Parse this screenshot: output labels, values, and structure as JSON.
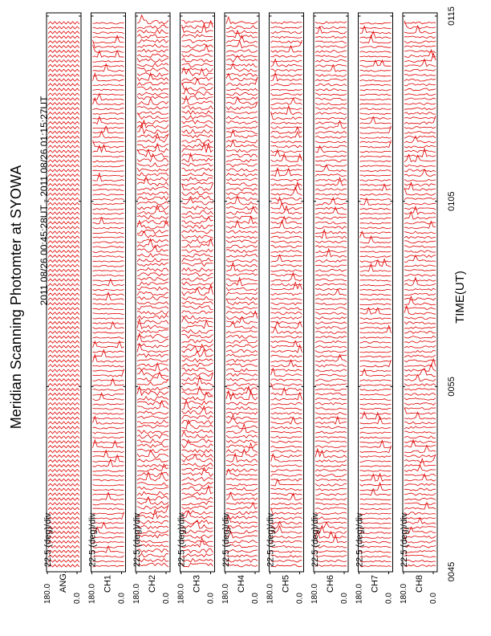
{
  "chart_data": {
    "type": "line",
    "title": "Meridian Scanning Photomter at SYOWA",
    "subtitle": "2011 08/26 00:45:28UT - 2011 08/26 01:15:27UT",
    "xlabel": "TIME(UT)",
    "xticks": [
      "0045",
      "0055",
      "0105",
      "0115"
    ],
    "color": "#e00000",
    "panels": [
      {
        "label": "ANG.",
        "scale": "22.5 (deg)/div",
        "yticks": [
          {
            "value": 180,
            "label": "180.0"
          },
          {
            "value": 0,
            "label": "0.0"
          }
        ]
      },
      {
        "label": "CH1",
        "scale": "22.5 (deg)/div",
        "yticks": [
          {
            "value": 180,
            "label": "180.0"
          },
          {
            "value": 0,
            "label": "0.0"
          }
        ]
      },
      {
        "label": "CH2",
        "scale": "22.5 (deg)/div",
        "yticks": [
          {
            "value": 180,
            "label": "180.0"
          },
          {
            "value": 0,
            "label": "0.0"
          }
        ]
      },
      {
        "label": "CH3",
        "scale": "22.5 (deg)/div",
        "yticks": [
          {
            "value": 180,
            "label": "180.0"
          },
          {
            "value": 0,
            "label": "0.0"
          }
        ]
      },
      {
        "label": "CH4",
        "scale": "22.5 (deg)/div",
        "yticks": [
          {
            "value": 180,
            "label": "180.0"
          },
          {
            "value": 0,
            "label": "0.0"
          }
        ]
      },
      {
        "label": "CH5",
        "scale": "22.5 (deg)/div",
        "yticks": [
          {
            "value": 180,
            "label": "180.0"
          },
          {
            "value": 0,
            "label": "0.0"
          }
        ]
      },
      {
        "label": "CH6",
        "scale": "22.5 (deg)/div",
        "yticks": [
          {
            "value": 180,
            "label": "180.0"
          },
          {
            "value": 0,
            "label": "0.0"
          }
        ]
      },
      {
        "label": "CH7",
        "scale": "22.5 (deg)/div",
        "yticks": [
          {
            "value": 180,
            "label": "180.0"
          },
          {
            "value": 0,
            "label": "0.0"
          }
        ]
      },
      {
        "label": "CH8",
        "scale": "22.5 (deg)/div",
        "yticks": [
          {
            "value": 180,
            "label": "180.0"
          },
          {
            "value": 0,
            "label": "0.0"
          }
        ]
      }
    ]
  }
}
